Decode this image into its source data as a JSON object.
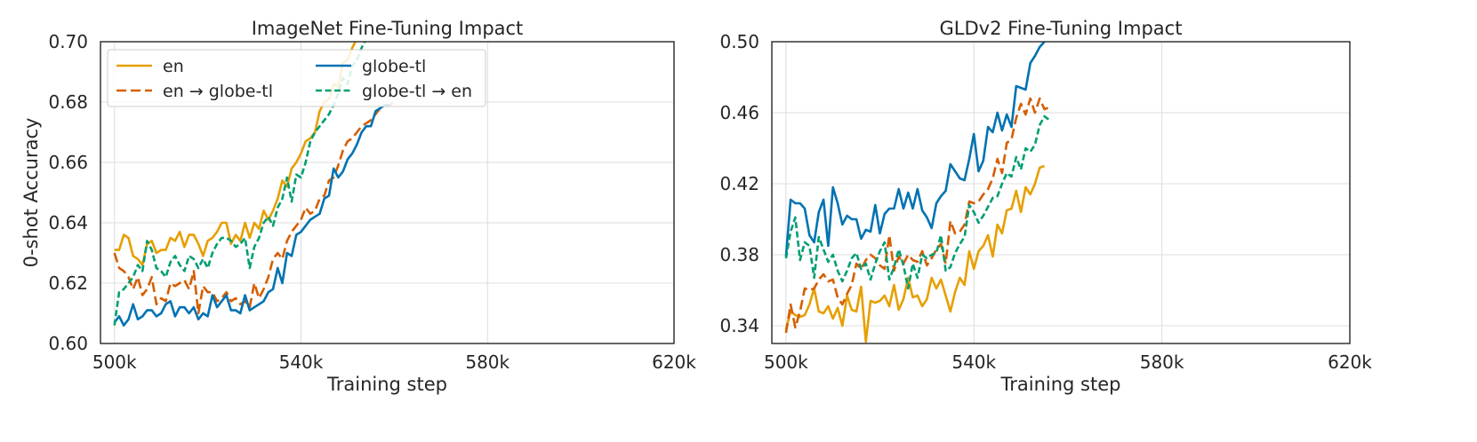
{
  "chart_data": [
    {
      "type": "line",
      "title": "ImageNet Fine-Tuning Impact",
      "xlabel": "Training step",
      "ylabel": "0-shot Accuracy",
      "xlim": [
        497000,
        620000
      ],
      "ylim": [
        0.6,
        0.7
      ],
      "xticks": [
        500000,
        540000,
        580000,
        620000
      ],
      "xtick_labels": [
        "500k",
        "540k",
        "580k",
        "620k"
      ],
      "yticks": [
        0.6,
        0.62,
        0.64,
        0.66,
        0.68,
        0.7
      ],
      "ytick_labels": [
        "0.60",
        "0.62",
        "0.64",
        "0.66",
        "0.68",
        "0.70"
      ],
      "grid": true,
      "legend": {
        "placement": "upper-left",
        "columns": 2
      },
      "x_start": 500000,
      "x_step": 1000,
      "series": [
        {
          "name": "en",
          "color": "#e69f00",
          "dash": "solid",
          "values": [
            0.631,
            0.631,
            0.636,
            0.635,
            0.629,
            0.628,
            0.626,
            0.633,
            0.634,
            0.63,
            0.631,
            0.631,
            0.635,
            0.634,
            0.637,
            0.632,
            0.636,
            0.636,
            0.633,
            0.629,
            0.634,
            0.635,
            0.637,
            0.64,
            0.64,
            0.633,
            0.636,
            0.634,
            0.64,
            0.635,
            0.64,
            0.638,
            0.644,
            0.641,
            0.644,
            0.648,
            0.654,
            0.652,
            0.658,
            0.66,
            0.663,
            0.667,
            0.668,
            0.67,
            0.677,
            0.68,
            0.681,
            0.686,
            0.685,
            0.693,
            0.694,
            0.698,
            0.701,
            0.703,
            0.704
          ]
        },
        {
          "name": "en → globe-tl",
          "color": "#d55e00",
          "dash": "dashed",
          "values": [
            0.63,
            0.625,
            0.624,
            0.622,
            0.618,
            0.622,
            0.616,
            0.618,
            0.622,
            0.613,
            0.615,
            0.614,
            0.62,
            0.619,
            0.62,
            0.621,
            0.618,
            0.624,
            0.61,
            0.619,
            0.617,
            0.617,
            0.614,
            0.615,
            0.617,
            0.614,
            0.615,
            0.613,
            0.614,
            0.612,
            0.62,
            0.615,
            0.618,
            0.622,
            0.628,
            0.63,
            0.628,
            0.634,
            0.637,
            0.639,
            0.641,
            0.645,
            0.643,
            0.644,
            0.648,
            0.649,
            0.654,
            0.655,
            0.659,
            0.664,
            0.667,
            0.668,
            0.67,
            0.672,
            0.673,
            0.674,
            0.676,
            0.678,
            0.679,
            0.679,
            0.68
          ]
        },
        {
          "name": "globe-tl",
          "color": "#0072b2",
          "dash": "solid",
          "values": [
            0.607,
            0.609,
            0.606,
            0.608,
            0.613,
            0.608,
            0.609,
            0.611,
            0.611,
            0.609,
            0.61,
            0.613,
            0.614,
            0.609,
            0.612,
            0.612,
            0.61,
            0.612,
            0.608,
            0.61,
            0.609,
            0.616,
            0.612,
            0.614,
            0.616,
            0.611,
            0.611,
            0.61,
            0.616,
            0.611,
            0.612,
            0.613,
            0.614,
            0.617,
            0.618,
            0.625,
            0.62,
            0.63,
            0.629,
            0.636,
            0.637,
            0.639,
            0.641,
            0.642,
            0.643,
            0.648,
            0.649,
            0.658,
            0.655,
            0.657,
            0.661,
            0.663,
            0.666,
            0.67,
            0.672,
            0.672,
            0.677,
            0.678,
            0.679,
            0.679
          ]
        },
        {
          "name": "globe-tl → en",
          "color": "#009e73",
          "dash": "dashed-small",
          "values": [
            0.606,
            0.617,
            0.618,
            0.62,
            0.622,
            0.626,
            0.624,
            0.634,
            0.631,
            0.625,
            0.624,
            0.622,
            0.627,
            0.629,
            0.626,
            0.624,
            0.629,
            0.628,
            0.625,
            0.628,
            0.625,
            0.63,
            0.633,
            0.635,
            0.635,
            0.634,
            0.632,
            0.633,
            0.635,
            0.625,
            0.632,
            0.635,
            0.64,
            0.642,
            0.639,
            0.645,
            0.648,
            0.655,
            0.647,
            0.656,
            0.655,
            0.66,
            0.667,
            0.67,
            0.672,
            0.674,
            0.676,
            0.679,
            0.683,
            0.688,
            0.686,
            0.692,
            0.694,
            0.698,
            0.701,
            0.703,
            0.704
          ]
        }
      ]
    },
    {
      "type": "line",
      "title": "GLDv2 Fine-Tuning Impact",
      "xlabel": "Training step",
      "ylabel": "",
      "xlim": [
        497000,
        620000
      ],
      "ylim": [
        0.33,
        0.5
      ],
      "xticks": [
        500000,
        540000,
        580000,
        620000
      ],
      "xtick_labels": [
        "500k",
        "540k",
        "580k",
        "620k"
      ],
      "yticks": [
        0.34,
        0.38,
        0.42,
        0.46,
        0.5
      ],
      "ytick_labels": [
        "0.34",
        "0.38",
        "0.42",
        "0.46",
        "0.50"
      ],
      "grid": true,
      "x_start": 500000,
      "x_step": 1000,
      "series": [
        {
          "name": "en",
          "color": "#e69f00",
          "dash": "solid",
          "values": [
            0.338,
            0.348,
            0.346,
            0.345,
            0.346,
            0.352,
            0.361,
            0.348,
            0.347,
            0.351,
            0.344,
            0.35,
            0.34,
            0.357,
            0.349,
            0.348,
            0.362,
            0.331,
            0.354,
            0.353,
            0.354,
            0.357,
            0.351,
            0.363,
            0.349,
            0.355,
            0.367,
            0.356,
            0.357,
            0.351,
            0.355,
            0.367,
            0.361,
            0.366,
            0.357,
            0.348,
            0.359,
            0.367,
            0.363,
            0.382,
            0.372,
            0.382,
            0.385,
            0.391,
            0.379,
            0.397,
            0.392,
            0.405,
            0.406,
            0.416,
            0.404,
            0.418,
            0.414,
            0.42,
            0.429,
            0.43
          ]
        },
        {
          "name": "en → globe-tl",
          "color": "#d55e00",
          "dash": "dashed",
          "values": [
            0.336,
            0.352,
            0.339,
            0.348,
            0.361,
            0.36,
            0.361,
            0.366,
            0.369,
            0.365,
            0.366,
            0.356,
            0.352,
            0.358,
            0.363,
            0.375,
            0.372,
            0.377,
            0.38,
            0.378,
            0.374,
            0.372,
            0.391,
            0.371,
            0.379,
            0.375,
            0.38,
            0.377,
            0.376,
            0.382,
            0.374,
            0.378,
            0.383,
            0.386,
            0.375,
            0.399,
            0.392,
            0.393,
            0.397,
            0.41,
            0.409,
            0.41,
            0.414,
            0.417,
            0.423,
            0.434,
            0.426,
            0.443,
            0.445,
            0.457,
            0.465,
            0.459,
            0.468,
            0.46,
            0.468,
            0.462,
            0.463
          ]
        },
        {
          "name": "globe-tl",
          "color": "#0072b2",
          "dash": "solid",
          "values": [
            0.379,
            0.411,
            0.409,
            0.409,
            0.406,
            0.391,
            0.387,
            0.404,
            0.411,
            0.385,
            0.418,
            0.409,
            0.397,
            0.402,
            0.4,
            0.4,
            0.389,
            0.394,
            0.393,
            0.408,
            0.392,
            0.403,
            0.406,
            0.406,
            0.417,
            0.406,
            0.415,
            0.406,
            0.417,
            0.405,
            0.401,
            0.395,
            0.409,
            0.413,
            0.416,
            0.431,
            0.427,
            0.423,
            0.422,
            0.434,
            0.448,
            0.427,
            0.433,
            0.452,
            0.449,
            0.46,
            0.45,
            0.459,
            0.452,
            0.475,
            0.474,
            0.473,
            0.488,
            0.492,
            0.497,
            0.5,
            0.503
          ]
        },
        {
          "name": "globe-tl → en",
          "color": "#009e73",
          "dash": "dashed-small",
          "values": [
            0.378,
            0.393,
            0.401,
            0.377,
            0.387,
            0.385,
            0.367,
            0.39,
            0.383,
            0.376,
            0.38,
            0.371,
            0.365,
            0.371,
            0.378,
            0.381,
            0.372,
            0.375,
            0.366,
            0.375,
            0.382,
            0.387,
            0.366,
            0.373,
            0.383,
            0.374,
            0.361,
            0.375,
            0.367,
            0.38,
            0.378,
            0.38,
            0.381,
            0.391,
            0.371,
            0.373,
            0.381,
            0.386,
            0.39,
            0.408,
            0.404,
            0.398,
            0.402,
            0.407,
            0.412,
            0.413,
            0.42,
            0.426,
            0.424,
            0.435,
            0.428,
            0.44,
            0.438,
            0.442,
            0.453,
            0.458,
            0.456
          ]
        }
      ]
    }
  ]
}
